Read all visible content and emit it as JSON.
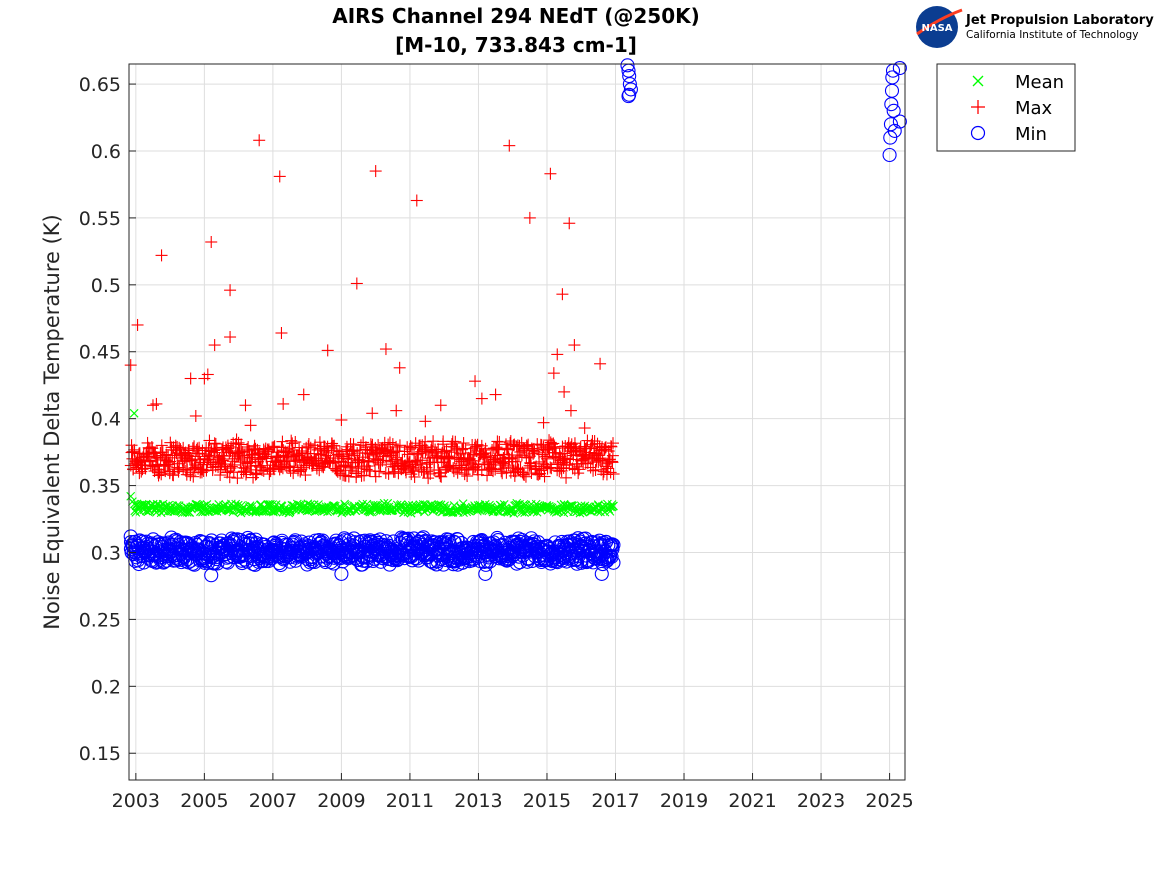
{
  "logo": {
    "badge_text": "NASA",
    "title": "Jet Propulsion Laboratory",
    "subtitle": "California Institute of Technology"
  },
  "chart_data": {
    "type": "scatter",
    "title": "AIRS Channel 294 NEdT (@250K)",
    "subtitle": "[M-10, 733.843 cm-1]",
    "xlabel": "",
    "ylabel": "Noise Equivalent Delta Temperature (K)",
    "xlim": [
      2002.8,
      2025.45
    ],
    "ylim": [
      0.13,
      0.665
    ],
    "x_ticks": [
      2003,
      2005,
      2007,
      2009,
      2011,
      2013,
      2015,
      2017,
      2019,
      2021,
      2023,
      2025
    ],
    "x_tick_labels": [
      "2003",
      "2005",
      "2007",
      "2009",
      "2011",
      "2013",
      "2015",
      "2017",
      "2019",
      "2021",
      "2023",
      "2025"
    ],
    "y_ticks": [
      0.15,
      0.2,
      0.25,
      0.3,
      0.35,
      0.4,
      0.45,
      0.5,
      0.55,
      0.6,
      0.65
    ],
    "y_tick_labels": [
      "0.15",
      "0.2",
      "0.25",
      "0.3",
      "0.35",
      "0.4",
      "0.45",
      "0.5",
      "0.55",
      "0.6",
      "0.65"
    ],
    "grid": true,
    "legend_position": "top-right outside",
    "series": [
      {
        "name": "Mean",
        "marker": "x",
        "color": "#00ff00",
        "points": [
          [
            2002.85,
            0.342
          ],
          [
            2002.9,
            0.338
          ],
          [
            2002.95,
            0.404
          ],
          [
            2003.0,
            0.33
          ],
          [
            2003.3,
            0.331
          ],
          [
            2003.6,
            0.33
          ],
          [
            2004.0,
            0.331
          ],
          [
            2004.5,
            0.33
          ],
          [
            2005.0,
            0.332
          ],
          [
            2005.5,
            0.331
          ],
          [
            2006.0,
            0.331
          ],
          [
            2006.5,
            0.33
          ],
          [
            2007.0,
            0.331
          ],
          [
            2007.5,
            0.331
          ],
          [
            2008.0,
            0.331
          ],
          [
            2008.5,
            0.331
          ],
          [
            2009.0,
            0.332
          ],
          [
            2009.5,
            0.332
          ],
          [
            2010.0,
            0.332
          ],
          [
            2010.5,
            0.332
          ],
          [
            2011.0,
            0.332
          ],
          [
            2011.5,
            0.332
          ],
          [
            2012.0,
            0.333
          ],
          [
            2012.5,
            0.333
          ],
          [
            2013.0,
            0.333
          ],
          [
            2013.2,
            0.336
          ],
          [
            2013.5,
            0.333
          ],
          [
            2014.0,
            0.333
          ],
          [
            2014.2,
            0.336
          ],
          [
            2014.5,
            0.335
          ],
          [
            2015.0,
            0.335
          ],
          [
            2015.5,
            0.336
          ],
          [
            2016.0,
            0.335
          ],
          [
            2016.5,
            0.335
          ],
          [
            2016.9,
            0.334
          ]
        ]
      },
      {
        "name": "Max",
        "marker": "+",
        "color": "#ff0000",
        "points": [
          [
            2002.85,
            0.44
          ],
          [
            2003.05,
            0.47
          ],
          [
            2003.75,
            0.522
          ],
          [
            2003.5,
            0.41
          ],
          [
            2003.6,
            0.411
          ],
          [
            2004.6,
            0.43
          ],
          [
            2004.75,
            0.402
          ],
          [
            2005.0,
            0.43
          ],
          [
            2005.1,
            0.433
          ],
          [
            2005.2,
            0.532
          ],
          [
            2005.3,
            0.455
          ],
          [
            2005.75,
            0.496
          ],
          [
            2005.75,
            0.461
          ],
          [
            2006.2,
            0.41
          ],
          [
            2006.35,
            0.395
          ],
          [
            2006.6,
            0.608
          ],
          [
            2007.2,
            0.581
          ],
          [
            2007.25,
            0.464
          ],
          [
            2007.3,
            0.411
          ],
          [
            2007.9,
            0.418
          ],
          [
            2008.6,
            0.451
          ],
          [
            2009.0,
            0.399
          ],
          [
            2009.45,
            0.501
          ],
          [
            2009.9,
            0.404
          ],
          [
            2010.0,
            0.585
          ],
          [
            2010.3,
            0.452
          ],
          [
            2010.6,
            0.406
          ],
          [
            2010.7,
            0.438
          ],
          [
            2011.2,
            0.563
          ],
          [
            2011.45,
            0.398
          ],
          [
            2011.9,
            0.41
          ],
          [
            2012.9,
            0.428
          ],
          [
            2013.1,
            0.415
          ],
          [
            2013.5,
            0.418
          ],
          [
            2013.9,
            0.604
          ],
          [
            2014.5,
            0.55
          ],
          [
            2014.9,
            0.397
          ],
          [
            2015.1,
            0.583
          ],
          [
            2015.2,
            0.434
          ],
          [
            2015.3,
            0.448
          ],
          [
            2015.45,
            0.493
          ],
          [
            2015.5,
            0.42
          ],
          [
            2015.65,
            0.546
          ],
          [
            2015.7,
            0.406
          ],
          [
            2015.8,
            0.455
          ],
          [
            2016.1,
            0.393
          ],
          [
            2016.55,
            0.441
          ],
          [
            2002.9,
            0.37
          ],
          [
            2003.5,
            0.365
          ],
          [
            2004.0,
            0.368
          ],
          [
            2004.5,
            0.362
          ],
          [
            2005.0,
            0.37
          ],
          [
            2005.5,
            0.366
          ],
          [
            2006.0,
            0.372
          ],
          [
            2006.5,
            0.365
          ],
          [
            2007.0,
            0.368
          ],
          [
            2007.5,
            0.364
          ],
          [
            2008.0,
            0.37
          ],
          [
            2008.5,
            0.366
          ],
          [
            2009.0,
            0.368
          ],
          [
            2009.5,
            0.363
          ],
          [
            2010.0,
            0.37
          ],
          [
            2010.5,
            0.366
          ],
          [
            2011.0,
            0.368
          ],
          [
            2011.5,
            0.366
          ],
          [
            2012.0,
            0.37
          ],
          [
            2012.5,
            0.368
          ],
          [
            2013.0,
            0.366
          ],
          [
            2013.5,
            0.37
          ],
          [
            2014.0,
            0.368
          ],
          [
            2014.5,
            0.372
          ],
          [
            2015.0,
            0.37
          ],
          [
            2015.5,
            0.374
          ],
          [
            2016.0,
            0.372
          ],
          [
            2016.5,
            0.37
          ],
          [
            2016.9,
            0.368
          ]
        ]
      },
      {
        "name": "Min",
        "marker": "o",
        "color": "#0000ff",
        "points": [
          [
            2002.85,
            0.312
          ],
          [
            2002.9,
            0.305
          ],
          [
            2003.0,
            0.3
          ],
          [
            2003.5,
            0.298
          ],
          [
            2004.0,
            0.3
          ],
          [
            2004.5,
            0.302
          ],
          [
            2005.0,
            0.299
          ],
          [
            2005.5,
            0.3
          ],
          [
            2006.0,
            0.302
          ],
          [
            2006.5,
            0.299
          ],
          [
            2007.0,
            0.3
          ],
          [
            2007.5,
            0.3
          ],
          [
            2008.0,
            0.3
          ],
          [
            2008.5,
            0.301
          ],
          [
            2009.0,
            0.3
          ],
          [
            2009.5,
            0.301
          ],
          [
            2010.0,
            0.302
          ],
          [
            2010.5,
            0.302
          ],
          [
            2011.0,
            0.302
          ],
          [
            2011.5,
            0.302
          ],
          [
            2012.0,
            0.303
          ],
          [
            2012.5,
            0.303
          ],
          [
            2013.0,
            0.303
          ],
          [
            2013.5,
            0.303
          ],
          [
            2014.0,
            0.304
          ],
          [
            2014.5,
            0.305
          ],
          [
            2015.0,
            0.305
          ],
          [
            2015.5,
            0.305
          ],
          [
            2016.0,
            0.305
          ],
          [
            2016.5,
            0.305
          ],
          [
            2016.9,
            0.304
          ],
          [
            2016.6,
            0.284
          ],
          [
            2013.2,
            0.284
          ],
          [
            2009.0,
            0.284
          ],
          [
            2005.2,
            0.283
          ],
          [
            2017.35,
            0.664
          ],
          [
            2017.38,
            0.66
          ],
          [
            2017.4,
            0.656
          ],
          [
            2017.42,
            0.65
          ],
          [
            2017.45,
            0.646
          ],
          [
            2017.4,
            0.642
          ],
          [
            2017.38,
            0.641
          ],
          [
            2025.0,
            0.597
          ],
          [
            2025.02,
            0.61
          ],
          [
            2025.04,
            0.62
          ],
          [
            2025.05,
            0.635
          ],
          [
            2025.07,
            0.645
          ],
          [
            2025.08,
            0.655
          ],
          [
            2025.1,
            0.66
          ],
          [
            2025.12,
            0.63
          ],
          [
            2025.15,
            0.615
          ],
          [
            2025.3,
            0.662
          ],
          [
            2025.3,
            0.622
          ]
        ]
      }
    ],
    "band_fills": [
      {
        "series": "Max",
        "x0": 2002.85,
        "x1": 2016.95,
        "y_low": 0.355,
        "y_high": 0.385,
        "count": 900
      },
      {
        "series": "Mean",
        "x0": 2002.95,
        "x1": 2016.95,
        "y_low": 0.329,
        "y_high": 0.337,
        "count": 500
      },
      {
        "series": "Min",
        "x0": 2002.85,
        "x1": 2016.95,
        "y_low": 0.29,
        "y_high": 0.312,
        "count": 900
      }
    ]
  }
}
